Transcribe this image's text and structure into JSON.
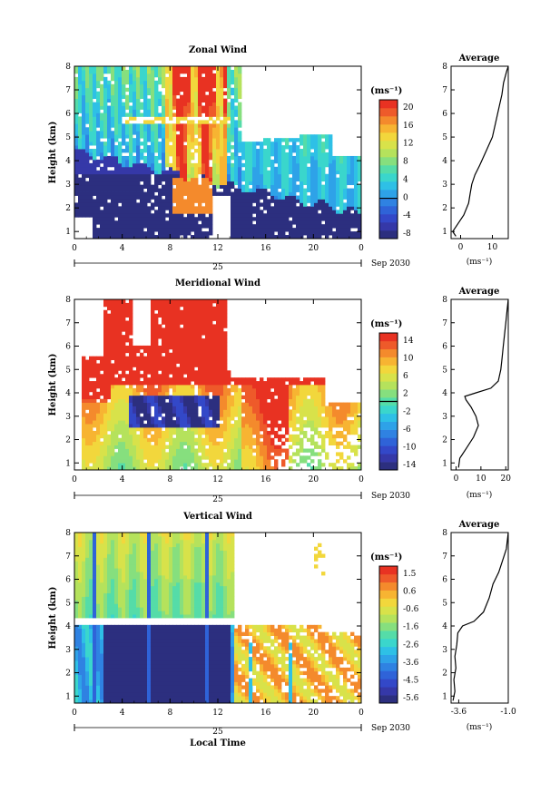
{
  "x_tick_labels": [
    "0",
    "4",
    "8",
    "12",
    "16",
    "20",
    "0"
  ],
  "y_tick_labels": [
    "1",
    "2",
    "3",
    "4",
    "5",
    "6",
    "7",
    "8"
  ],
  "day_label": "25",
  "date_label": "Sep 2030",
  "y_axis_label": "Height (km)",
  "x_axis_label": "Local Time",
  "colorbar_unit": "(ms⁻¹)",
  "average_title": "Average",
  "average_xlabel": "(ms⁻¹)",
  "palette": [
    "#2c2f7f",
    "#3538a8",
    "#3348c8",
    "#2f63d8",
    "#2f82e2",
    "#2ea2e8",
    "#2ec0e6",
    "#3ad6cc",
    "#55dca8",
    "#86df7e",
    "#b5e25c",
    "#d8e24a",
    "#f2d73c",
    "#f7b432",
    "#f48a2c",
    "#ee5a2a",
    "#e83222"
  ],
  "chart_data": [
    {
      "type": "heatmap",
      "title": "Zonal Wind",
      "ylim": [
        0.7,
        8
      ],
      "xlim": [
        0,
        24
      ],
      "colorbar": {
        "ticks": [
          "20",
          "16",
          "12",
          "8",
          "4",
          "0",
          "-4",
          "-8"
        ],
        "range": [
          -9,
          22
        ],
        "zero_line": 0
      },
      "average": {
        "xlim": [
          -3,
          15
        ],
        "ticks": [
          "0",
          "10"
        ],
        "profile": [
          [
            -1.5,
            0.8
          ],
          [
            -2.5,
            1.0
          ],
          [
            -1,
            1.3
          ],
          [
            1,
            1.7
          ],
          [
            2.5,
            2.2
          ],
          [
            3,
            2.6
          ],
          [
            3.5,
            3.0
          ],
          [
            4.5,
            3.4
          ],
          [
            6,
            3.8
          ],
          [
            8,
            4.4
          ],
          [
            10,
            5.0
          ],
          [
            11,
            5.6
          ],
          [
            12,
            6.2
          ],
          [
            13,
            6.8
          ],
          [
            13.5,
            7.3
          ],
          [
            14.5,
            7.8
          ],
          [
            15,
            8.0
          ]
        ]
      }
    },
    {
      "type": "heatmap",
      "title": "Meridional Wind",
      "ylim": [
        0.7,
        8
      ],
      "xlim": [
        0,
        24
      ],
      "colorbar": {
        "ticks": [
          "14",
          "10",
          "6",
          "2",
          "-2",
          "-6",
          "-10",
          "-14"
        ],
        "range": [
          -16,
          16
        ],
        "zero_line": 0
      },
      "average": {
        "xlim": [
          -2,
          21
        ],
        "ticks": [
          "0",
          "10",
          "20"
        ],
        "profile": [
          [
            1,
            0.8
          ],
          [
            1.5,
            1.2
          ],
          [
            4,
            1.6
          ],
          [
            7,
            2.1
          ],
          [
            9,
            2.6
          ],
          [
            8,
            3.0
          ],
          [
            6,
            3.4
          ],
          [
            4,
            3.7
          ],
          [
            3.5,
            3.85
          ],
          [
            8,
            4.0
          ],
          [
            14,
            4.2
          ],
          [
            17,
            4.5
          ],
          [
            18,
            5.0
          ],
          [
            18.5,
            5.5
          ],
          [
            19,
            6.0
          ],
          [
            19.5,
            6.5
          ],
          [
            20,
            7.0
          ],
          [
            20.5,
            7.5
          ],
          [
            21,
            8.0
          ]
        ]
      }
    },
    {
      "type": "heatmap",
      "title": "Vertical Wind",
      "ylim": [
        0.7,
        8
      ],
      "xlim": [
        0,
        24
      ],
      "colorbar": {
        "ticks": [
          "1.5",
          "0.6",
          "-0.6",
          "-1.6",
          "-2.6",
          "-3.6",
          "-4.5",
          "-5.6"
        ],
        "range": [
          -6,
          2
        ]
      },
      "average": {
        "xlim": [
          -4,
          -1
        ],
        "ticks": [
          "-3.6",
          "-1.0"
        ],
        "profile": [
          [
            -3.9,
            0.8
          ],
          [
            -3.8,
            1.2
          ],
          [
            -3.85,
            1.7
          ],
          [
            -3.75,
            2.2
          ],
          [
            -3.8,
            2.7
          ],
          [
            -3.7,
            3.2
          ],
          [
            -3.65,
            3.7
          ],
          [
            -3.4,
            4.0
          ],
          [
            -2.8,
            4.2
          ],
          [
            -2.3,
            4.6
          ],
          [
            -2.0,
            5.2
          ],
          [
            -1.8,
            5.8
          ],
          [
            -1.5,
            6.3
          ],
          [
            -1.3,
            6.8
          ],
          [
            -1.1,
            7.3
          ],
          [
            -1.0,
            8.0
          ]
        ]
      }
    }
  ]
}
